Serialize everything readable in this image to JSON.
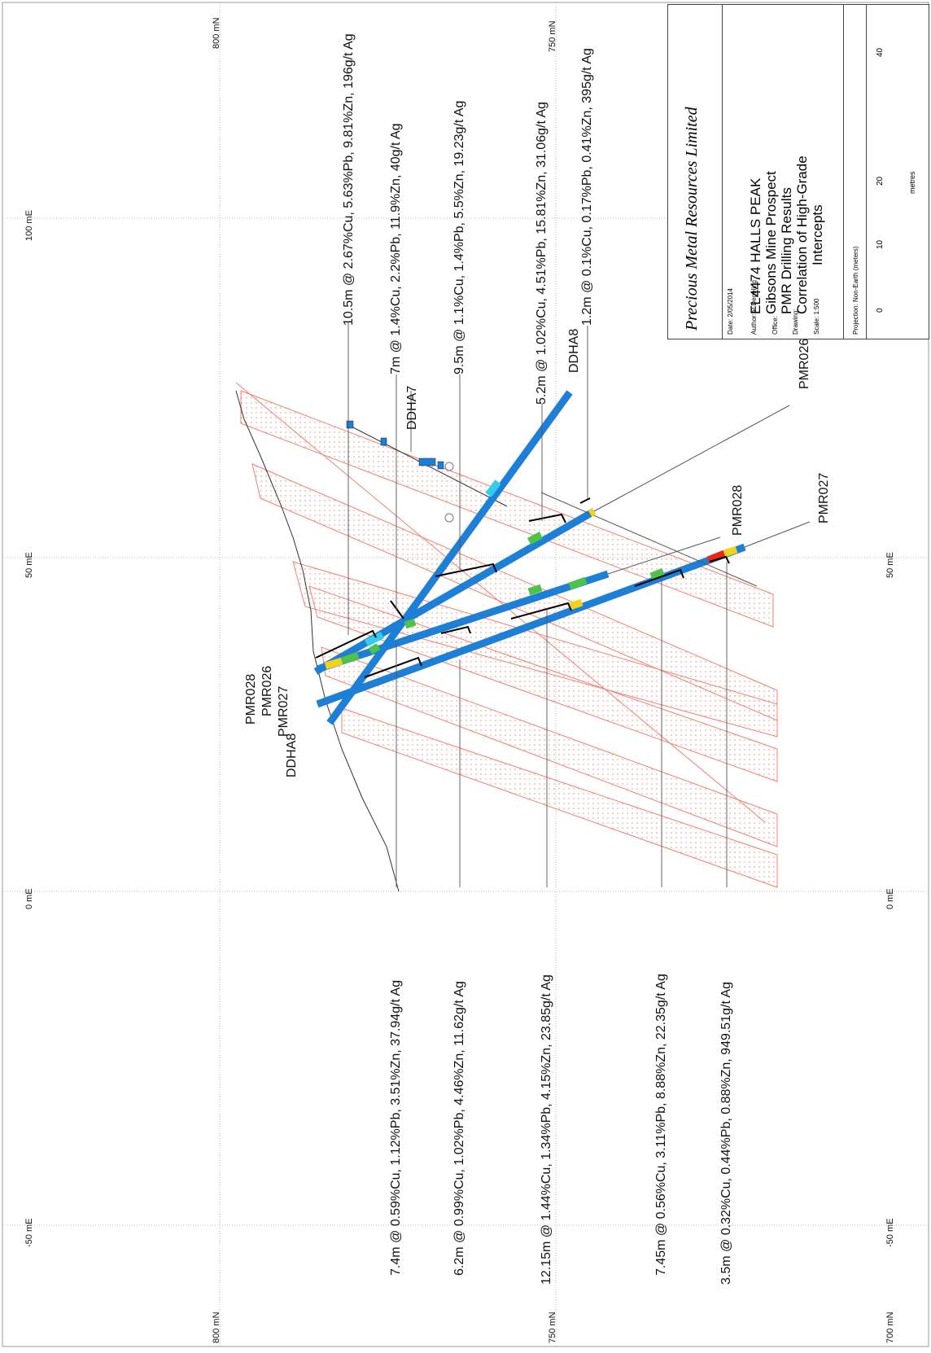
{
  "title_block": {
    "company": "Precious Metal Resources Limited",
    "title_lines": [
      "EL4474 HALLS PEAK",
      "Gibsons Mine Prospect",
      "PMR Drilling Results",
      "Correlation of High-Grade",
      "Intercepts"
    ],
    "date": "Date: 2/05/2014",
    "author": "Author: P Degeling",
    "office": "Office:",
    "drawing": "Drawing:",
    "scale": "Scale: 1:500",
    "projection": "Projection: Non-Earth (meters)",
    "scale_bar": {
      "ticks": [
        "0",
        "10",
        "20",
        "40"
      ],
      "unit": "metres"
    }
  },
  "grid_labels": {
    "left": [
      "100 mE",
      "50 mE",
      "0 mE",
      "-50 mE"
    ],
    "right": [
      "50 mE",
      "0 mE",
      "-50 mE"
    ],
    "top": [
      "800 mN",
      "750 mN"
    ],
    "bottom": [
      "800 mN",
      "750 mN",
      "700 mN"
    ]
  },
  "hole_labels": {
    "collar": [
      "PMR028",
      "PMR026",
      "PMR027",
      "DDHA8"
    ],
    "top_ddha7": "DDHA7",
    "top_ddha8": "DDHA8",
    "pmr026_end": "PMR026",
    "pmr028_end": "PMR028",
    "pmr027_end": "PMR027"
  },
  "intercepts_top": [
    "10.5m @ 2.67%Cu, 5.63%Pb, 9.81%Zn, 196g/t Ag",
    "7m @ 1.4%Cu, 2.2%Pb, 11.9%Zn, 40g/t Ag",
    "9.5m @ 1.1%Cu, 1.4%Pb, 5.5%Zn, 19.23g/t Ag",
    "5.2m @ 1.02%Cu, 4.51%Pb, 15.81%Zn, 31.06g/t Ag",
    "1.2m @ 0.1%Cu, 0.17%Pb, 0.41%Zn, 395g/t Ag"
  ],
  "intercepts_bottom": [
    "7.4m @ 0.59%Cu, 1.12%Pb, 3.51%Zn, 37.94g/t Ag",
    "6.2m @ 0.99%Cu, 1.02%Pb, 4.46%Zn, 11.62g/t Ag",
    "12.15m @ 1.44%Cu, 1.34%Pb, 4.15%Zn, 23.85g/t Ag",
    "7.45m @ 0.56%Cu, 3.11%Pb, 8.88%Zn, 22.35g/t Ag",
    "3.5m @ 0.32%Cu, 0.44%Pb, 0.88%Zn, 949.51g/t Ag"
  ],
  "colors": {
    "grid": "#999999",
    "ore_zone": "#f08070",
    "drill_trace": "#1e7fd6",
    "high_grade_red": "#e8261c",
    "mid_grade_yellow": "#f2d31c",
    "low_grade_green": "#4fc24a",
    "cyan": "#33ccee"
  }
}
